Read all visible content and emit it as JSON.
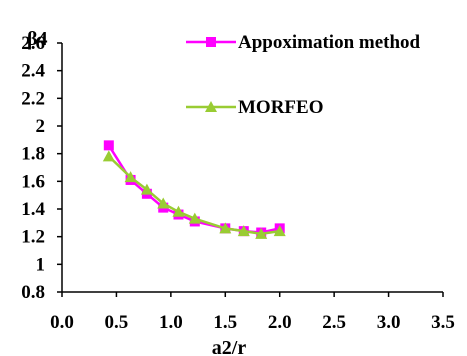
{
  "chart_data": {
    "type": "line",
    "xlabel": "a2/r",
    "ylabel": "β4",
    "xlim": [
      0.0,
      3.5
    ],
    "ylim": [
      0.8,
      2.6
    ],
    "x_ticks": [
      "0.0",
      "0.5",
      "1.0",
      "1.5",
      "2.0",
      "2.5",
      "3.0",
      "3.5"
    ],
    "y_ticks": [
      "0.8",
      "1",
      "1.2",
      "1.4",
      "1.6",
      "1.8",
      "2",
      "2.2",
      "2.4",
      "2.6"
    ],
    "grid": false,
    "legend": "top-right",
    "series": [
      {
        "name": "Appoximation method",
        "color": "#ff00ff",
        "marker": "square",
        "points": [
          [
            0.43,
            1.86
          ],
          [
            0.63,
            1.61
          ],
          [
            0.78,
            1.51
          ],
          [
            0.93,
            1.41
          ],
          [
            1.07,
            1.36
          ],
          [
            1.22,
            1.31
          ],
          [
            1.5,
            1.26
          ],
          [
            1.67,
            1.24
          ],
          [
            1.83,
            1.23
          ],
          [
            2.0,
            1.26
          ]
        ]
      },
      {
        "name": "MORFEO",
        "color": "#99cc33",
        "marker": "triangle",
        "points": [
          [
            0.43,
            1.78
          ],
          [
            0.63,
            1.63
          ],
          [
            0.78,
            1.54
          ],
          [
            0.93,
            1.44
          ],
          [
            1.07,
            1.38
          ],
          [
            1.22,
            1.33
          ],
          [
            1.5,
            1.26
          ],
          [
            1.67,
            1.24
          ],
          [
            1.83,
            1.22
          ],
          [
            2.0,
            1.24
          ]
        ]
      }
    ]
  }
}
